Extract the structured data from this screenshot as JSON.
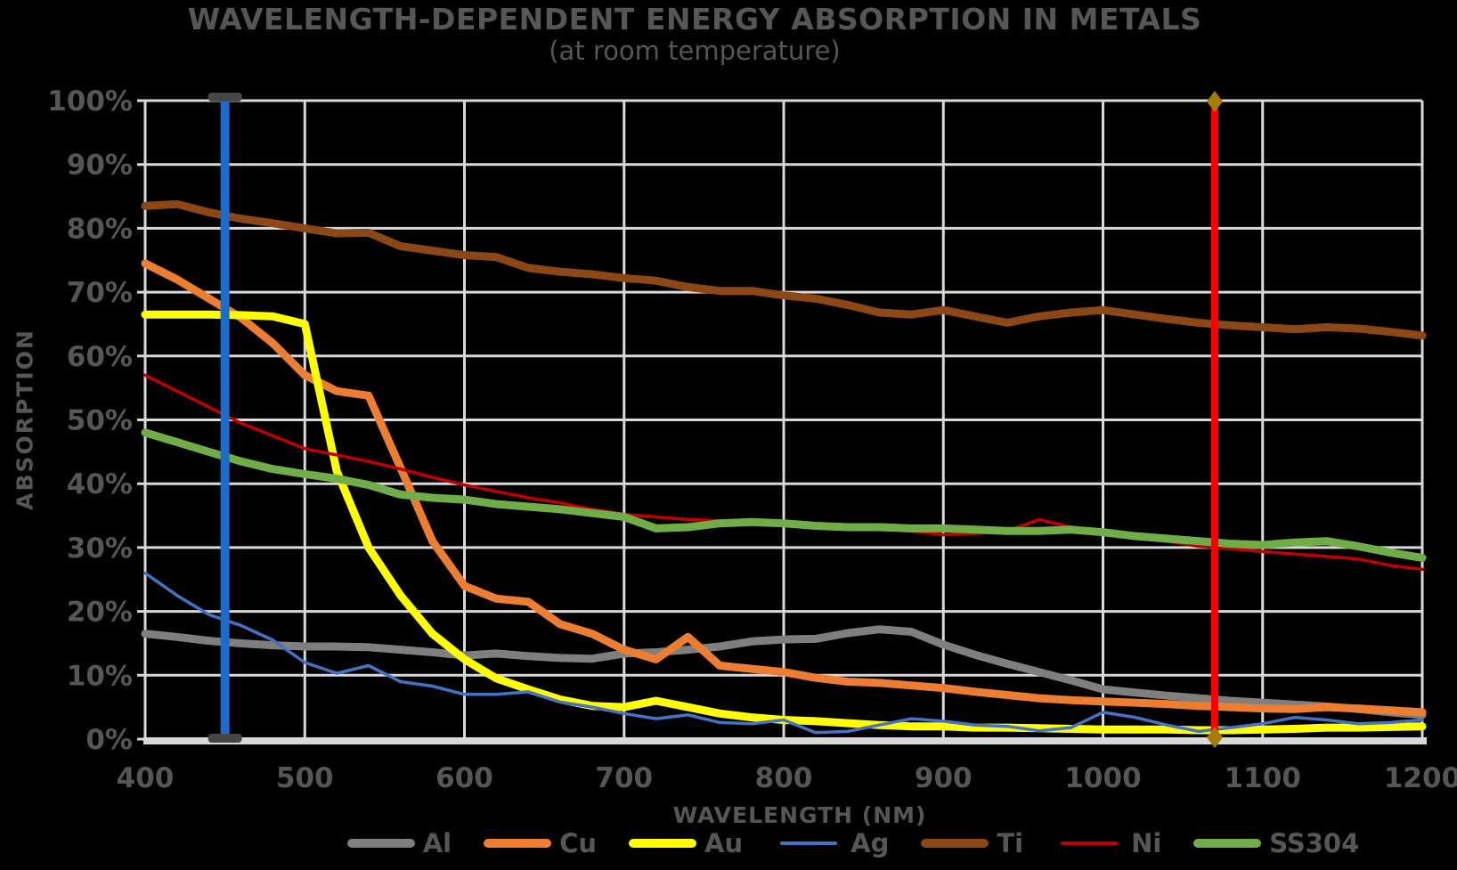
{
  "title": "WAVELENGTH-DEPENDENT ENERGY ABSORPTION IN METALS",
  "subtitle": "(at room temperature)",
  "x_axis": {
    "title": "WAVELENGTH (NM)",
    "ticks": [
      {
        "value": 400,
        "label": "400"
      },
      {
        "value": 500,
        "label": "500"
      },
      {
        "value": 600,
        "label": "600"
      },
      {
        "value": 700,
        "label": "700"
      },
      {
        "value": 800,
        "label": "800"
      },
      {
        "value": 900,
        "label": "900"
      },
      {
        "value": 1000,
        "label": "1000"
      },
      {
        "value": 1100,
        "label": "1100"
      },
      {
        "value": 1200,
        "label": "1200"
      }
    ]
  },
  "y_axis": {
    "title": "ABSORPTION",
    "ticks": [
      {
        "value": 0,
        "label": "0%"
      },
      {
        "value": 10,
        "label": "10%"
      },
      {
        "value": 20,
        "label": "20%"
      },
      {
        "value": 30,
        "label": "30%"
      },
      {
        "value": 40,
        "label": "40%"
      },
      {
        "value": 50,
        "label": "50%"
      },
      {
        "value": 60,
        "label": "60%"
      },
      {
        "value": 70,
        "label": "70%"
      },
      {
        "value": 80,
        "label": "80%"
      },
      {
        "value": 90,
        "label": "90%"
      },
      {
        "value": 100,
        "label": "100%"
      }
    ]
  },
  "colors": {
    "background": "#000000",
    "gridline": "#D9D9D9",
    "axis_line": "#D9D9D9",
    "text": "#565656",
    "vline_450": "#1C6DC9",
    "vline_450_cap": "#474747",
    "vline_1070": "#FE0000",
    "vline_1070_marker": "#A67C00"
  },
  "legend": [
    {
      "label": "Al",
      "color": "#7F7F7F",
      "thin": false
    },
    {
      "label": "Cu",
      "color": "#ED7D31",
      "thin": false
    },
    {
      "label": "Au",
      "color": "#FFFF00",
      "thin": false
    },
    {
      "label": "Ag",
      "color": "#4472C4",
      "thin": true
    },
    {
      "label": "Ti",
      "color": "#8B4715",
      "thin": false
    },
    {
      "label": "Ni",
      "color": "#C00000",
      "thin": true
    },
    {
      "label": "SS304",
      "color": "#70AD47",
      "thin": false
    }
  ],
  "chart_data": {
    "type": "line",
    "xlabel": "WAVELENGTH (NM)",
    "ylabel": "ABSORPTION",
    "xlim": [
      400,
      1200
    ],
    "ylim": [
      0,
      100
    ],
    "grid": true,
    "legend_position": "bottom",
    "x": [
      400,
      420,
      440,
      460,
      480,
      500,
      520,
      540,
      560,
      580,
      600,
      620,
      640,
      660,
      680,
      700,
      720,
      740,
      760,
      780,
      800,
      820,
      840,
      860,
      880,
      900,
      920,
      940,
      960,
      980,
      1000,
      1020,
      1040,
      1060,
      1080,
      1100,
      1120,
      1140,
      1160,
      1180,
      1200
    ],
    "series": [
      {
        "name": "Al",
        "color": "#7F7F7F",
        "width": 9,
        "values": [
          16.5,
          16.0,
          15.4,
          15.0,
          14.7,
          14.5,
          14.5,
          14.4,
          14.0,
          13.6,
          13.1,
          13.4,
          13.0,
          12.7,
          12.6,
          13.4,
          13.6,
          14.0,
          14.5,
          15.3,
          15.6,
          15.7,
          16.6,
          17.2,
          16.8,
          14.8,
          13.2,
          11.8,
          10.5,
          9.2,
          7.8,
          7.3,
          6.8,
          6.4,
          6.0,
          5.7,
          5.4,
          5.1,
          4.7,
          4.2,
          3.8
        ]
      },
      {
        "name": "Cu",
        "color": "#ED7D31",
        "width": 9,
        "values": [
          74.5,
          72.0,
          69.0,
          66.0,
          62.0,
          57.0,
          54.5,
          53.8,
          42.5,
          31.0,
          24.0,
          22.0,
          21.5,
          18.0,
          16.5,
          14.0,
          12.5,
          16.0,
          11.5,
          11.0,
          10.5,
          9.6,
          9.0,
          8.8,
          8.4,
          8.0,
          7.4,
          6.9,
          6.4,
          6.1,
          5.9,
          5.7,
          5.5,
          5.2,
          5.0,
          4.8,
          4.7,
          5.0,
          4.8,
          4.5,
          4.2
        ]
      },
      {
        "name": "Au",
        "color": "#FFFF00",
        "width": 9,
        "values": [
          66.5,
          66.5,
          66.5,
          66.4,
          66.2,
          65.0,
          42.0,
          30.0,
          22.5,
          16.5,
          12.5,
          9.5,
          7.8,
          6.2,
          5.2,
          5.0,
          6.0,
          5.0,
          4.0,
          3.4,
          3.0,
          2.8,
          2.5,
          2.2,
          2.0,
          2.0,
          1.8,
          1.8,
          1.7,
          1.6,
          1.5,
          1.5,
          1.5,
          1.4,
          1.4,
          1.5,
          1.6,
          1.8,
          1.8,
          1.9,
          2.0
        ]
      },
      {
        "name": "Ag",
        "color": "#4472C4",
        "width": 3.5,
        "values": [
          26.0,
          22.5,
          19.5,
          17.8,
          15.5,
          12.0,
          10.3,
          11.5,
          9.0,
          8.3,
          7.0,
          7.0,
          7.4,
          5.8,
          5.0,
          4.0,
          3.2,
          3.8,
          2.6,
          2.4,
          3.0,
          1.0,
          1.2,
          2.2,
          3.2,
          2.8,
          2.2,
          2.0,
          1.3,
          1.8,
          4.2,
          3.4,
          2.2,
          1.2,
          1.8,
          2.4,
          3.4,
          3.0,
          2.4,
          2.6,
          3.0
        ]
      },
      {
        "name": "Ti",
        "color": "#8B4715",
        "width": 9,
        "values": [
          83.5,
          83.8,
          82.5,
          81.5,
          80.8,
          80.0,
          79.2,
          79.3,
          77.2,
          76.5,
          75.8,
          75.5,
          73.8,
          73.2,
          72.8,
          72.2,
          71.8,
          70.8,
          70.2,
          70.2,
          69.5,
          69.0,
          68.0,
          66.8,
          66.5,
          67.2,
          66.2,
          65.2,
          66.2,
          66.8,
          67.2,
          66.5,
          65.8,
          65.2,
          64.8,
          64.5,
          64.2,
          64.5,
          64.3,
          63.8,
          63.2
        ]
      },
      {
        "name": "Ni",
        "color": "#C00000",
        "width": 3.5,
        "values": [
          57.0,
          54.5,
          52.0,
          49.5,
          47.5,
          45.5,
          44.5,
          43.5,
          42.3,
          41.0,
          39.8,
          38.8,
          37.8,
          37.0,
          36.0,
          35.2,
          34.8,
          34.4,
          34.2,
          33.8,
          33.6,
          33.4,
          33.2,
          33.0,
          32.6,
          32.0,
          32.2,
          32.6,
          34.4,
          33.2,
          32.4,
          31.8,
          31.0,
          30.2,
          29.8,
          29.4,
          29.0,
          28.6,
          28.2,
          27.2,
          26.6
        ]
      },
      {
        "name": "SS304",
        "color": "#70AD47",
        "width": 9,
        "values": [
          48.0,
          46.5,
          45.0,
          43.5,
          42.3,
          41.5,
          40.8,
          39.8,
          38.3,
          37.8,
          37.5,
          36.8,
          36.4,
          36.0,
          35.4,
          34.8,
          33.0,
          33.2,
          33.8,
          34.0,
          33.8,
          33.4,
          33.2,
          33.2,
          33.0,
          33.0,
          32.8,
          32.6,
          32.6,
          32.8,
          32.4,
          31.8,
          31.4,
          31.0,
          30.6,
          30.4,
          30.8,
          31.0,
          30.2,
          29.2,
          28.4
        ]
      }
    ],
    "annotations": [
      {
        "type": "vline",
        "x": 450,
        "color": "#1C6DC9",
        "width": 10,
        "marker": "bar",
        "marker_color": "#474747"
      },
      {
        "type": "vline",
        "x": 1070,
        "color": "#FE0000",
        "width": 8,
        "marker": "diamond",
        "marker_color": "#A67C00"
      }
    ]
  }
}
